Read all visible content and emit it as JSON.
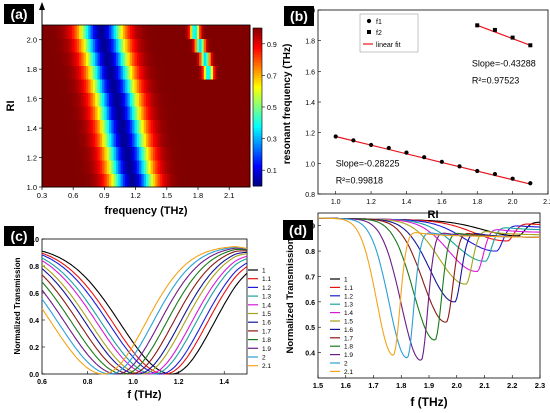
{
  "panel_labels": [
    "(a)",
    "(b)",
    "(c)",
    "(d)"
  ],
  "colorbar": {
    "ticks": [
      "0.9",
      "0.7",
      "0.5",
      "0.3",
      "0.1"
    ]
  },
  "chart_data": [
    {
      "id": "a",
      "type": "heatmap",
      "xlabel": "frequency (THz)",
      "ylabel": "RI",
      "xlim": [
        0.3,
        2.3
      ],
      "ylim": [
        1.0,
        2.1
      ],
      "xticks": [
        "0.3",
        "0.6",
        "0.9",
        "1.2",
        "1.5",
        "1.8",
        "2.1"
      ],
      "yticks": [
        "1.0",
        "1.2",
        "1.4",
        "1.6",
        "1.8",
        "2.0"
      ],
      "value_range": [
        0.0,
        1.0
      ],
      "rows_RI": [
        1.0,
        1.1,
        1.2,
        1.3,
        1.4,
        1.5,
        1.6,
        1.7,
        1.8,
        1.9,
        2.0,
        2.1
      ],
      "dip1_freq": [
        1.17,
        1.14,
        1.12,
        1.09,
        1.07,
        1.04,
        1.02,
        0.99,
        0.96,
        0.93,
        0.9,
        0.87
      ],
      "dip2_freq": [
        null,
        null,
        null,
        null,
        null,
        null,
        null,
        null,
        1.9,
        1.87,
        1.82,
        1.77
      ]
    },
    {
      "id": "b",
      "type": "scatter",
      "xlabel": "RI",
      "ylabel": "resonant frequency (THz)",
      "xlim": [
        0.9,
        2.2
      ],
      "ylim": [
        0.8,
        2.0
      ],
      "xticks": [
        "1.0",
        "1.2",
        "1.4",
        "1.6",
        "1.8",
        "2.0",
        "2.2"
      ],
      "yticks": [
        "0.8",
        "1.0",
        "1.2",
        "1.4",
        "1.6",
        "1.8",
        "2.0"
      ],
      "legend": [
        "f1",
        "f2",
        "linear fit"
      ],
      "series": [
        {
          "name": "f1",
          "x": [
            1.0,
            1.1,
            1.2,
            1.3,
            1.4,
            1.5,
            1.6,
            1.7,
            1.8,
            1.9,
            2.0,
            2.1
          ],
          "y": [
            1.175,
            1.15,
            1.12,
            1.1,
            1.07,
            1.04,
            1.01,
            0.98,
            0.95,
            0.93,
            0.9,
            0.87
          ]
        },
        {
          "name": "f2",
          "x": [
            1.8,
            1.9,
            2.0,
            2.1
          ],
          "y": [
            1.9,
            1.87,
            1.82,
            1.77
          ]
        }
      ],
      "fits": [
        {
          "x": [
            1.0,
            2.1
          ],
          "y": [
            1.175,
            0.865
          ]
        },
        {
          "x": [
            1.8,
            2.1
          ],
          "y": [
            1.9,
            1.77
          ]
        }
      ],
      "annotations": [
        {
          "text": "Slope=-0.43288",
          "x": 1.77,
          "y": 1.63
        },
        {
          "text": "R²=0.97523",
          "x": 1.77,
          "y": 1.52
        },
        {
          "text": "Slope=-0.28225",
          "x": 1.0,
          "y": 0.98
        },
        {
          "text": "R²=0.99818",
          "x": 1.0,
          "y": 0.87
        }
      ]
    },
    {
      "id": "c",
      "type": "line",
      "xlabel": "f (THz)",
      "ylabel": "Normalized Transmission",
      "xlim": [
        0.6,
        1.5
      ],
      "ylim": [
        0.0,
        1.0
      ],
      "xticks": [
        "0.6",
        "0.8",
        "1.0",
        "1.2",
        "1.4"
      ],
      "yticks": [
        "0.0",
        "0.2",
        "0.4",
        "0.6",
        "0.8",
        "1.0"
      ],
      "legend": [
        "1",
        "1.1",
        "1.2",
        "1.3",
        "1.4",
        "1.5",
        "1.6",
        "1.7",
        "1.8",
        "1.9",
        "2",
        "2.1"
      ],
      "dip_freq": [
        1.17,
        1.14,
        1.12,
        1.09,
        1.07,
        1.04,
        1.02,
        0.99,
        0.96,
        0.93,
        0.9,
        0.87
      ],
      "dip_min": 0.0
    },
    {
      "id": "d",
      "type": "line",
      "xlabel": "f (THz)",
      "ylabel": "Normalized Transmission",
      "xlim": [
        1.5,
        2.3
      ],
      "ylim": [
        0.3,
        0.95
      ],
      "xticks": [
        "1.5",
        "1.6",
        "1.7",
        "1.8",
        "1.9",
        "2.0",
        "2.1",
        "2.2",
        "2.3"
      ],
      "yticks": [
        "0.4",
        "0.5",
        "0.6",
        "0.7",
        "0.8",
        "0.9"
      ],
      "legend": [
        "1",
        "1.1",
        "1.2",
        "1.3",
        "1.4",
        "1.5",
        "1.6",
        "1.7",
        "1.8",
        "1.9",
        "2",
        "2.1"
      ],
      "dip_freq": [
        2.22,
        2.18,
        2.14,
        2.1,
        2.07,
        2.03,
        1.99,
        1.96,
        1.92,
        1.87,
        1.82,
        1.77
      ],
      "dip_min": [
        0.86,
        0.84,
        0.8,
        0.76,
        0.72,
        0.67,
        0.6,
        0.52,
        0.45,
        0.37,
        0.38,
        0.39
      ]
    }
  ],
  "colors": {
    "series": [
      "#000000",
      "#e8130c",
      "#1d1dd9",
      "#19a3a3",
      "#d81bd8",
      "#a6a41a",
      "#15159a",
      "#8b1a14",
      "#1a7a1a",
      "#6d1b86",
      "#2a9fd6",
      "#f5a21a"
    ],
    "fit_line": "#e8131c"
  }
}
